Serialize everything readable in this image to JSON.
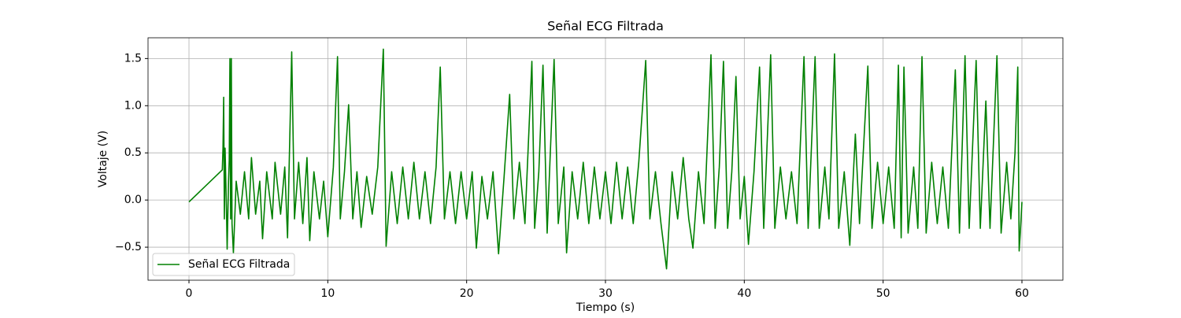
{
  "chart_data": {
    "type": "line",
    "title": "Señal ECG Filtrada",
    "x_label": "Tiempo (s)",
    "y_label": "Voltaje (V)",
    "grid": true,
    "legend_position": "lower left",
    "xlim": [
      -2.95,
      62.95
    ],
    "ylim": [
      -0.85,
      1.72
    ],
    "xticks": [
      0,
      10,
      20,
      30,
      40,
      50,
      60
    ],
    "yticks": [
      {
        "value": -0.5,
        "label": "−0.5"
      },
      {
        "value": 0,
        "label": "0.0"
      },
      0.5,
      {
        "value": 1,
        "label": "1.0"
      },
      1.5
    ],
    "x": [
      0,
      2.4,
      2.45,
      2.5,
      2.55,
      2.6,
      2.7,
      2.75,
      2.85,
      2.9,
      2.95,
      3.0,
      3.05,
      3.1,
      3.2,
      3.4,
      3.7,
      4.0,
      4.3,
      4.5,
      4.8,
      5.1,
      5.3,
      5.6,
      6.0,
      6.2,
      6.6,
      6.9,
      7.1,
      7.4,
      7.6,
      7.9,
      8.2,
      8.5,
      8.7,
      9.0,
      9.4,
      9.7,
      10.0,
      10.4,
      10.7,
      10.9,
      11.2,
      11.5,
      11.8,
      12.1,
      12.4,
      12.8,
      13.2,
      13.6,
      14.0,
      14.2,
      14.6,
      15.0,
      15.4,
      15.8,
      16.2,
      16.6,
      17.0,
      17.4,
      17.8,
      18.1,
      18.4,
      18.8,
      19.2,
      19.6,
      20.0,
      20.4,
      20.7,
      21.1,
      21.5,
      21.9,
      22.3,
      22.7,
      23.1,
      23.4,
      23.8,
      24.2,
      24.7,
      24.9,
      25.2,
      25.5,
      25.8,
      26.0,
      26.3,
      26.6,
      27.0,
      27.2,
      27.6,
      28.0,
      28.4,
      28.8,
      29.2,
      29.6,
      30.0,
      30.4,
      30.8,
      31.2,
      31.6,
      32.0,
      32.4,
      32.9,
      33.2,
      33.6,
      34.0,
      34.4,
      34.8,
      35.2,
      35.6,
      36.0,
      36.3,
      36.7,
      37.1,
      37.6,
      37.9,
      38.2,
      38.5,
      38.8,
      39.1,
      39.4,
      39.7,
      40.0,
      40.3,
      40.7,
      41.1,
      41.4,
      41.9,
      42.2,
      42.6,
      43.0,
      43.4,
      43.8,
      44.3,
      44.6,
      45.1,
      45.4,
      45.8,
      46.1,
      46.5,
      46.8,
      47.2,
      47.6,
      48.0,
      48.3,
      48.9,
      49.2,
      49.6,
      50.0,
      50.4,
      50.8,
      51.1,
      51.3,
      51.5,
      51.8,
      52.2,
      52.5,
      52.8,
      53.1,
      53.5,
      53.9,
      54.3,
      54.7,
      55.2,
      55.5,
      55.9,
      56.2,
      56.7,
      57.0,
      57.4,
      57.7,
      58.2,
      58.5,
      58.9,
      59.2,
      59.5,
      59.7,
      59.8,
      59.9,
      60
    ],
    "series": [
      {
        "name": "Señal ECG Filtrada",
        "color": "#008000",
        "values": [
          -0.02,
          0.32,
          0.55,
          1.09,
          -0.2,
          0.55,
          -0.1,
          -0.52,
          0.2,
          0.42,
          1.5,
          -0.2,
          1.5,
          -0.25,
          -0.56,
          0.2,
          -0.15,
          0.3,
          -0.2,
          0.45,
          -0.15,
          0.2,
          -0.41,
          0.3,
          -0.2,
          0.4,
          -0.15,
          0.35,
          -0.4,
          1.57,
          -0.2,
          0.4,
          -0.25,
          0.45,
          -0.43,
          0.3,
          -0.2,
          0.2,
          -0.39,
          0.35,
          1.52,
          -0.2,
          0.3,
          1.01,
          -0.2,
          0.3,
          -0.29,
          0.25,
          -0.15,
          0.35,
          1.6,
          -0.49,
          0.3,
          -0.25,
          0.35,
          -0.2,
          0.4,
          -0.2,
          0.3,
          -0.25,
          0.35,
          1.41,
          -0.2,
          0.3,
          -0.25,
          0.3,
          -0.2,
          0.3,
          -0.51,
          0.25,
          -0.2,
          0.3,
          -0.57,
          0.25,
          1.12,
          -0.2,
          0.4,
          -0.25,
          1.47,
          -0.3,
          0.3,
          1.43,
          -0.35,
          0.4,
          1.49,
          -0.25,
          0.35,
          -0.56,
          0.3,
          -0.2,
          0.4,
          -0.25,
          0.35,
          -0.2,
          0.3,
          -0.25,
          0.4,
          -0.2,
          0.35,
          -0.25,
          0.4,
          1.48,
          -0.2,
          0.3,
          -0.25,
          -0.73,
          0.3,
          -0.2,
          0.45,
          -0.2,
          -0.51,
          0.3,
          -0.25,
          1.54,
          -0.3,
          0.35,
          1.47,
          -0.3,
          0.3,
          1.31,
          -0.2,
          0.25,
          -0.47,
          0.3,
          1.41,
          -0.3,
          1.54,
          -0.3,
          0.35,
          -0.2,
          0.3,
          -0.25,
          1.52,
          -0.3,
          1.52,
          -0.3,
          0.35,
          -0.2,
          1.55,
          -0.3,
          0.3,
          -0.48,
          0.7,
          -0.25,
          1.42,
          -0.3,
          0.4,
          -0.25,
          0.35,
          -0.3,
          1.43,
          -0.4,
          1.41,
          -0.35,
          0.35,
          -0.3,
          1.52,
          -0.35,
          0.4,
          -0.25,
          0.35,
          -0.3,
          1.38,
          -0.35,
          1.53,
          -0.3,
          1.48,
          -0.3,
          1.05,
          -0.3,
          1.53,
          -0.35,
          0.4,
          -0.2,
          0.5,
          1.41,
          -0.54,
          -0.3,
          -0.02
        ]
      }
    ]
  }
}
